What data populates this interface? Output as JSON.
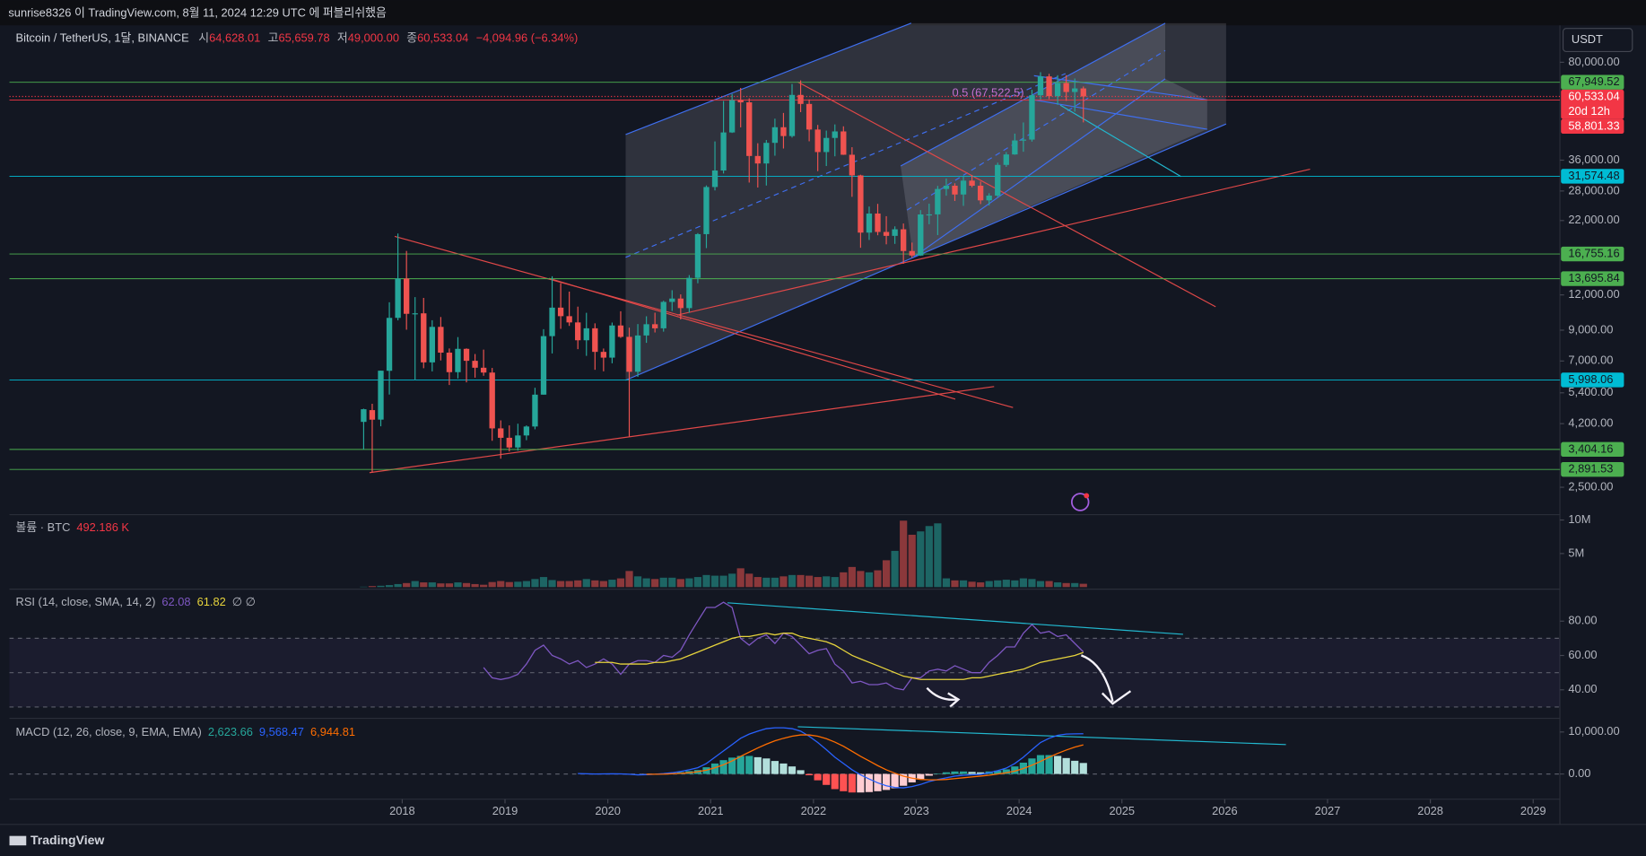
{
  "top_bar": {
    "text": "sunrise8326 이 TradingView.com, 8월 11, 2024 12:29 UTC 에 퍼블리쉬했음"
  },
  "footer": {
    "logo": "TradingView"
  },
  "chart_data": {
    "type": "candlestick",
    "currency": "USDT",
    "header": {
      "symbol": "Bitcoin / TetherUS, 1달, BINANCE",
      "o_label": "시",
      "o": "64,628.01",
      "h_label": "고",
      "h": "65,659.78",
      "l_label": "저",
      "l": "49,000.00",
      "c_label": "종",
      "c": "60,533.04",
      "change": "−4,094.96 (−6.34%)"
    },
    "annotation": "0.5 (67,522.5)",
    "up_color": "#26a69a",
    "down_color": "#ef5350",
    "log_scale": true,
    "ylim": [
      2000,
      110000
    ],
    "yticks": [
      {
        "value": 80000,
        "label": "80,000.00"
      },
      {
        "value": 36000,
        "label": "36,000.00"
      },
      {
        "value": 28000,
        "label": "28,000.00"
      },
      {
        "value": 22000,
        "label": "22,000.00"
      },
      {
        "value": 12000,
        "label": "12,000.00"
      },
      {
        "value": 9000,
        "label": "9,000.00"
      },
      {
        "value": 7000,
        "label": "7,000.00"
      },
      {
        "value": 5400,
        "label": "5,400.00"
      },
      {
        "value": 4200,
        "label": "4,200.00"
      },
      {
        "value": 2500,
        "label": "2,500.00"
      }
    ],
    "xlim": [
      2014.18,
      2029.26
    ],
    "xticks": [
      2018,
      2019,
      2020,
      2021,
      2022,
      2023,
      2024,
      2025,
      2026,
      2027,
      2028,
      2029
    ],
    "last": {
      "value": 60533.04,
      "label": "60,533.04",
      "countdown": "20d 12h",
      "color": "#f23645"
    },
    "levels": [
      {
        "value": 67949.52,
        "label": "67,949.52",
        "color": "#4caf50"
      },
      {
        "value": 58801.33,
        "label": "58,801.33",
        "color": "#f23645"
      },
      {
        "value": 31574.48,
        "label": "31,574.48",
        "color": "#00bcd4"
      },
      {
        "value": 16755.16,
        "label": "16,755.16",
        "color": "#4caf50"
      },
      {
        "value": 13695.84,
        "label": "13,695.84",
        "color": "#4caf50"
      },
      {
        "value": 5998.06,
        "label": "5,998.06",
        "color": "#00bcd4"
      },
      {
        "value": 3404.16,
        "label": "3,404.16",
        "color": "#4caf50"
      },
      {
        "value": 2891.53,
        "label": "2,891.53",
        "color": "#4caf50"
      }
    ],
    "candles": [
      [
        4261,
        4745,
        3400,
        4724
      ],
      [
        4690,
        4939,
        2817,
        4338
      ],
      [
        4340,
        6470,
        4110,
        6468
      ],
      [
        6463,
        11300,
        5325,
        9950
      ],
      [
        9950,
        19798,
        9750,
        13716
      ],
      [
        13716,
        17176,
        9035,
        10285
      ],
      [
        10285,
        11786,
        6000,
        10327
      ],
      [
        10326,
        11710,
        6600,
        6923
      ],
      [
        6922,
        9759,
        6430,
        9246
      ],
      [
        9246,
        10020,
        7032,
        7494
      ],
      [
        7494,
        7754,
        5755,
        6391
      ],
      [
        6391,
        8506,
        6070,
        7730
      ],
      [
        7730,
        7760,
        5880,
        7011
      ],
      [
        7011,
        7410,
        6111,
        6626
      ],
      [
        6626,
        7680,
        6205,
        6371
      ],
      [
        6370,
        6615,
        3652,
        4041
      ],
      [
        4041,
        4313,
        3156,
        3742
      ],
      [
        3743,
        4140,
        3349,
        3458
      ],
      [
        3458,
        4198,
        3371,
        3814
      ],
      [
        3814,
        4140,
        3670,
        4103
      ],
      [
        4103,
        5627,
        4011,
        5320
      ],
      [
        5320,
        9074,
        5320,
        8574
      ],
      [
        8574,
        13970,
        7444,
        10817
      ],
      [
        10817,
        13203,
        9100,
        10089
      ],
      [
        10089,
        12325,
        9320,
        9588
      ],
      [
        9588,
        10905,
        7710,
        8289
      ],
      [
        8289,
        10370,
        7300,
        9140
      ],
      [
        9140,
        9517,
        6515,
        7541
      ],
      [
        7541,
        7750,
        6435,
        7195
      ],
      [
        7195,
        9578,
        6871,
        9352
      ],
      [
        9352,
        10500,
        8450,
        8523
      ],
      [
        8523,
        9188,
        3782,
        6410
      ],
      [
        6412,
        9460,
        6150,
        8620
      ],
      [
        8620,
        10080,
        8117,
        9448
      ],
      [
        9448,
        10380,
        8833,
        9138
      ],
      [
        9138,
        11444,
        8893,
        11335
      ],
      [
        11335,
        12468,
        10518,
        11649
      ],
      [
        11649,
        12050,
        9825,
        10776
      ],
      [
        10776,
        14100,
        10375,
        13791
      ],
      [
        13791,
        19863,
        13195,
        19695
      ],
      [
        19695,
        29300,
        17572,
        28923
      ],
      [
        28923,
        41950,
        28130,
        33092
      ],
      [
        33092,
        58352,
        32296,
        45135
      ],
      [
        45134,
        61781,
        44950,
        58740
      ],
      [
        58739,
        64854,
        47044,
        57694
      ],
      [
        57697,
        59600,
        30000,
        37253
      ],
      [
        37253,
        41330,
        28805,
        35045
      ],
      [
        35045,
        42448,
        29278,
        41461
      ],
      [
        41461,
        50500,
        37332,
        47100
      ],
      [
        47100,
        52920,
        39600,
        43824
      ],
      [
        43820,
        67000,
        43283,
        61300
      ],
      [
        61300,
        69000,
        53256,
        56950
      ],
      [
        56950,
        59053,
        42000,
        46216
      ],
      [
        46216,
        47990,
        32917,
        38466
      ],
      [
        38466,
        45821,
        34322,
        43160
      ],
      [
        43160,
        48190,
        37155,
        45510
      ],
      [
        45510,
        47444,
        37578,
        37630
      ],
      [
        37630,
        40023,
        26700,
        31801
      ],
      [
        31801,
        31982,
        17622,
        19942
      ],
      [
        19942,
        24668,
        18781,
        23293
      ],
      [
        23297,
        25211,
        19520,
        20050
      ],
      [
        20050,
        22799,
        18125,
        19422
      ],
      [
        19422,
        20988,
        18190,
        20491
      ],
      [
        20491,
        21480,
        15476,
        17163
      ],
      [
        17165,
        18387,
        16256,
        16542
      ],
      [
        16542,
        23960,
        16500,
        23125
      ],
      [
        23125,
        25250,
        21351,
        23141
      ],
      [
        23141,
        29184,
        19549,
        28465
      ],
      [
        28465,
        31000,
        26942,
        29233
      ],
      [
        29233,
        29820,
        25810,
        27210
      ],
      [
        27210,
        31431,
        24800,
        30472
      ],
      [
        30472,
        31804,
        28861,
        29232
      ],
      [
        29232,
        30244,
        25166,
        25941
      ],
      [
        25941,
        27488,
        24901,
        26963
      ],
      [
        26963,
        35280,
        26538,
        34639
      ],
      [
        34639,
        38450,
        34097,
        37724
      ],
      [
        37724,
        44700,
        37615,
        42284
      ],
      [
        42284,
        48970,
        38555,
        42580
      ],
      [
        42580,
        63913,
        41884,
        61131
      ],
      [
        61131,
        73777,
        59005,
        71280
      ],
      [
        71280,
        72797,
        59191,
        60672
      ],
      [
        60672,
        71979,
        56552,
        67540
      ],
      [
        67540,
        71997,
        58402,
        62772
      ],
      [
        62772,
        70079,
        53485,
        64628
      ],
      [
        64628.01,
        65659.78,
        49000,
        60533.04
      ]
    ],
    "volume": {
      "legend": "볼륨 · BTC",
      "last": "492.186 K",
      "ylim": [
        0,
        10800000
      ],
      "yticks": [
        {
          "value": 5000000,
          "label": "5M"
        },
        {
          "value": 10000000,
          "label": "10M"
        }
      ],
      "values": [
        60000,
        150000,
        200000,
        300000,
        450000,
        600000,
        900000,
        700000,
        700000,
        550000,
        550000,
        700000,
        600000,
        450000,
        350000,
        750000,
        900000,
        750000,
        800000,
        900000,
        1200000,
        1500000,
        1050000,
        900000,
        900000,
        1000000,
        1200000,
        1000000,
        900000,
        1100000,
        1300000,
        2400000,
        1600000,
        1300000,
        1200000,
        1400000,
        1400000,
        1200000,
        1300000,
        1500000,
        1800000,
        1700000,
        1700000,
        2000000,
        2800000,
        2000000,
        1500000,
        1400000,
        1400000,
        1600000,
        1800000,
        1800000,
        1700000,
        1500000,
        1600000,
        1500000,
        2200000,
        3000000,
        2400000,
        2200000,
        2500000,
        4000000,
        5400000,
        9900000,
        7800000,
        8300000,
        9100000,
        9500000,
        1300000,
        1000000,
        1000000,
        800000,
        700000,
        900000,
        1000000,
        1100000,
        1000000,
        1300000,
        1200000,
        900000,
        900000,
        700000,
        600000,
        600000,
        492186
      ]
    },
    "rsi": {
      "legend": "RSI (14, close, SMA, 14, 2)",
      "last": "62.08",
      "sma_last": "61.82",
      "extra": "∅ ∅",
      "color": "#7e57c2",
      "sma_color": "#e6d33c",
      "ylim": [
        24,
        98
      ],
      "yticks": [
        {
          "value": 40,
          "label": "40.00"
        },
        {
          "value": 60,
          "label": "60.00"
        },
        {
          "value": 80,
          "label": "80.00"
        }
      ],
      "bands": [
        30,
        50,
        70
      ],
      "values": [
        null,
        null,
        null,
        null,
        null,
        null,
        null,
        null,
        null,
        null,
        null,
        null,
        null,
        null,
        53,
        47,
        46,
        47,
        49,
        55,
        63,
        66,
        60,
        58,
        55,
        57,
        53,
        55,
        58,
        55,
        49,
        55,
        57,
        57,
        56,
        60,
        59,
        63,
        72,
        80,
        88,
        88,
        91,
        88,
        70,
        66,
        70,
        72,
        67,
        73,
        71,
        66,
        61,
        63,
        64,
        55,
        51,
        44,
        45,
        43,
        43,
        44,
        41,
        40,
        47,
        47,
        51,
        52,
        51,
        54,
        52,
        50,
        50,
        56,
        60,
        65,
        65,
        73,
        78,
        73,
        74,
        71,
        72,
        67,
        62.08
      ],
      "sma": [
        null,
        null,
        null,
        null,
        null,
        null,
        null,
        null,
        null,
        null,
        null,
        null,
        null,
        null,
        null,
        null,
        null,
        null,
        null,
        null,
        null,
        null,
        null,
        null,
        null,
        null,
        null,
        56,
        56,
        56,
        55,
        55,
        55,
        55,
        56,
        56,
        57,
        58,
        60,
        62,
        64,
        66,
        68,
        70,
        71,
        71,
        72,
        73,
        72,
        73,
        73,
        71,
        70,
        69,
        68,
        66,
        63,
        60,
        58,
        56,
        54,
        52,
        50,
        48,
        47,
        46,
        46,
        46,
        46,
        46,
        46,
        47,
        47,
        48,
        49,
        50,
        51,
        52,
        54,
        56,
        57,
        58,
        59,
        60,
        61.82
      ]
    },
    "macd": {
      "legend": "MACD (12, 26, close, 9, EMA, EMA)",
      "hist_last": "2,623.66",
      "macd_last": "9,568.47",
      "signal_last": "6,944.81",
      "color": "#2962ff",
      "signal_color": "#ff6d00",
      "hist_colors": [
        "#26a69a",
        "#b2dfdb",
        "#ff5252",
        "#ffcdd2"
      ],
      "ylim": [
        -5750,
        13000
      ],
      "yticks": [
        {
          "value": 0,
          "label": "0.00"
        },
        {
          "value": 10000,
          "label": "10,000.00"
        }
      ],
      "values": [
        null,
        null,
        null,
        null,
        null,
        null,
        null,
        null,
        null,
        null,
        null,
        null,
        null,
        null,
        null,
        null,
        null,
        null,
        null,
        null,
        null,
        null,
        null,
        null,
        null,
        100,
        50,
        0,
        30,
        50,
        20,
        -50,
        -200,
        -150,
        -50,
        100,
        300,
        600,
        1000,
        1500,
        2500,
        4000,
        5500,
        7000,
        8500,
        9500,
        10200,
        10800,
        11000,
        11000,
        10800,
        10200,
        9000,
        7500,
        5800,
        4000,
        2500,
        1000,
        -200,
        -1200,
        -2100,
        -2800,
        -3200,
        -3300,
        -3000,
        -2500,
        -1800,
        -1300,
        -900,
        -500,
        -300,
        -200,
        -100,
        300,
        800,
        1400,
        2500,
        4000,
        5800,
        7500,
        8500,
        9200,
        9500,
        9550,
        9568.47
      ],
      "signal": [
        null,
        null,
        null,
        null,
        null,
        null,
        null,
        null,
        null,
        null,
        null,
        null,
        null,
        null,
        null,
        null,
        null,
        null,
        null,
        null,
        null,
        null,
        null,
        null,
        null,
        null,
        null,
        null,
        null,
        null,
        null,
        null,
        null,
        -50,
        -50,
        -20,
        40,
        150,
        300,
        550,
        900,
        1500,
        2200,
        3100,
        4200,
        5200,
        6200,
        7100,
        7900,
        8500,
        9000,
        9300,
        9300,
        9000,
        8400,
        7600,
        6600,
        5400,
        4200,
        3100,
        2000,
        1000,
        200,
        -500,
        -1000,
        -1300,
        -1400,
        -1400,
        -1300,
        -1100,
        -900,
        -700,
        -500,
        -300,
        0,
        300,
        700,
        1300,
        2100,
        3000,
        4000,
        4900,
        5700,
        6400,
        6944.81
      ],
      "histogram": [
        null,
        null,
        null,
        null,
        null,
        null,
        null,
        null,
        null,
        null,
        null,
        null,
        null,
        null,
        null,
        null,
        null,
        null,
        null,
        null,
        null,
        null,
        null,
        null,
        null,
        null,
        null,
        null,
        null,
        null,
        null,
        null,
        null,
        -100,
        0,
        120,
        260,
        450,
        700,
        950,
        1600,
        2500,
        3300,
        3900,
        4300,
        4300,
        4000,
        3700,
        3100,
        2500,
        1800,
        900,
        -300,
        -1500,
        -2600,
        -3600,
        -4100,
        -4400,
        -4400,
        -4300,
        -4100,
        -3800,
        -3400,
        -2800,
        -2000,
        -1200,
        -400,
        100,
        400,
        600,
        600,
        500,
        400,
        600,
        800,
        1100,
        1800,
        2700,
        3700,
        4500,
        4500,
        4300,
        3800,
        3150,
        2623.66
      ]
    }
  }
}
